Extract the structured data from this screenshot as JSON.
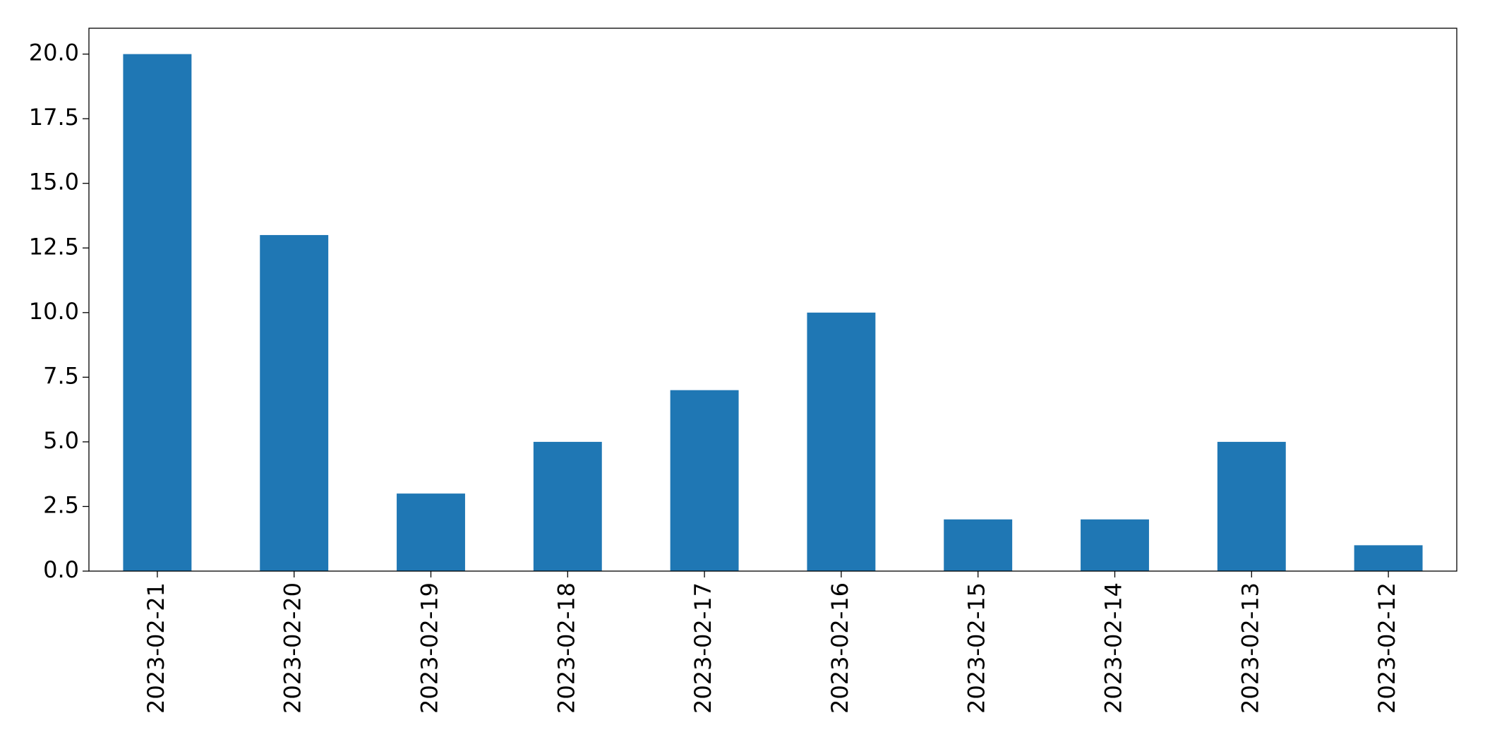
{
  "chart_data": {
    "type": "bar",
    "categories": [
      "2023-02-21",
      "2023-02-20",
      "2023-02-19",
      "2023-02-18",
      "2023-02-17",
      "2023-02-16",
      "2023-02-15",
      "2023-02-14",
      "2023-02-13",
      "2023-02-12"
    ],
    "values": [
      20,
      13,
      3,
      5,
      7,
      10,
      2,
      2,
      5,
      1
    ],
    "color": "#1f77b4",
    "ylim": [
      0,
      21
    ],
    "yticks": [
      {
        "value": 0,
        "label": "0.0"
      },
      {
        "value": 2.5,
        "label": "2.5"
      },
      {
        "value": 5,
        "label": "5.0"
      },
      {
        "value": 7.5,
        "label": "7.5"
      },
      {
        "value": 10,
        "label": "10.0"
      },
      {
        "value": 12.5,
        "label": "12.5"
      },
      {
        "value": 15,
        "label": "15.0"
      },
      {
        "value": 17.5,
        "label": "17.5"
      },
      {
        "value": 20,
        "label": "20.0"
      }
    ],
    "grid": false
  }
}
